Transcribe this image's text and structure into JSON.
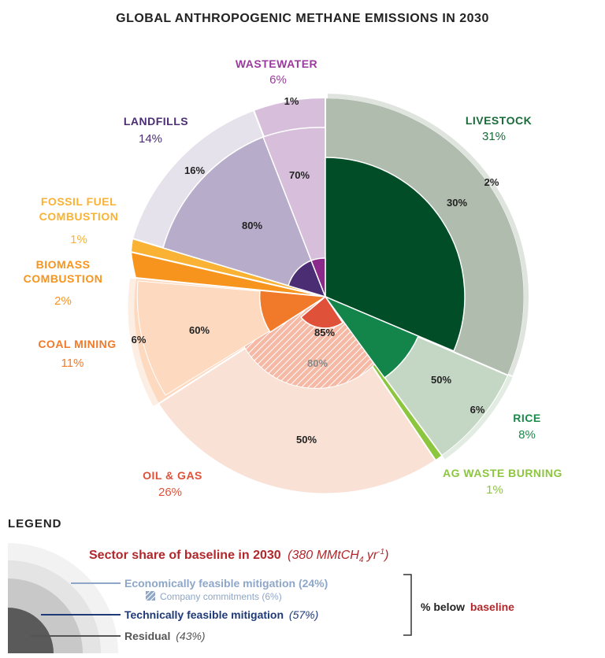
{
  "chart_data": {
    "type": "pie",
    "title": "GLOBAL ANTHROPOGENIC METHANE EMISSIONS IN 2030",
    "sectors": [
      {
        "name": "LIVESTOCK",
        "share": "31%",
        "share_value": 31,
        "color": "#1a6b3a",
        "economic": "2%",
        "technical": "30%",
        "residual": null
      },
      {
        "name": "RICE",
        "share": "8%",
        "share_value": 8,
        "color": "#1a8a4a",
        "economic": "6%",
        "technical": "50%",
        "residual": null
      },
      {
        "name": "AG WASTE BURNING",
        "share": "1%",
        "share_value": 1,
        "color": "#8cc63f",
        "economic": null,
        "technical": null,
        "residual": null
      },
      {
        "name": "OIL & GAS",
        "share": "26%",
        "share_value": 26,
        "color": "#e0513a",
        "economic": "50%",
        "technical": "85%",
        "company_commitments": "80%",
        "residual": null
      },
      {
        "name": "COAL MINING",
        "share": "11%",
        "share_value": 11,
        "color": "#f07a2a",
        "economic": "6%",
        "technical": "60%",
        "residual": null
      },
      {
        "name": "BIOMASS COMBUSTION",
        "share": "2%",
        "share_value": 2,
        "color": "#f7941d",
        "economic": null,
        "technical": null,
        "residual": null
      },
      {
        "name": "FOSSIL FUEL COMBUSTION",
        "share": "1%",
        "share_value": 1,
        "color": "#f9b233",
        "economic": null,
        "technical": null,
        "residual": null
      },
      {
        "name": "LANDFILLS",
        "share": "14%",
        "share_value": 14,
        "color": "#4b2d73",
        "economic": "16%",
        "technical": "80%",
        "residual": null
      },
      {
        "name": "WASTEWATER",
        "share": "6%",
        "share_value": 6,
        "color": "#8b2a8b",
        "economic": "1%",
        "technical": "70%",
        "residual": null
      }
    ]
  },
  "legend": {
    "heading": "LEGEND",
    "baseline_label": "Sector share of baseline in 2030",
    "baseline_unit_prefix": "(380 MMtCH",
    "baseline_unit_sub": "4",
    "baseline_unit_mid": " yr",
    "baseline_unit_sup": "-1",
    "baseline_unit_suffix": ")",
    "economic_label": "Economically feasible mitigation (24%)",
    "company_label": "Company commitments (6%)",
    "technical_label": "Technically feasible mitigation",
    "technical_value": "(57%)",
    "residual_label": "Residual",
    "residual_value": "(43%)",
    "bracket_label_prefix": "% below",
    "bracket_label_emph": "baseline"
  }
}
